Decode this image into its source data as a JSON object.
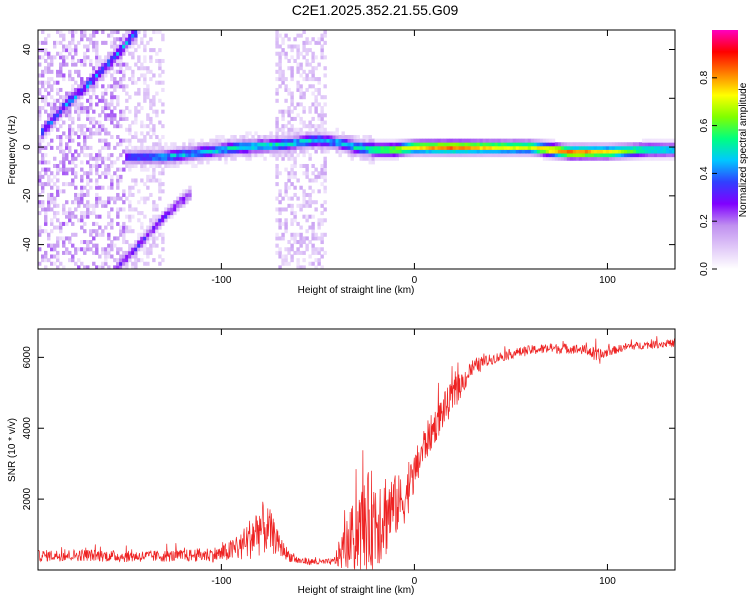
{
  "title": "C2E1.2025.352.21.55.G09",
  "chart_data": [
    {
      "type": "heatmap",
      "xlabel": "Height of straight line (km)",
      "ylabel": "Frequency (Hz)",
      "xlim": [
        -195,
        135
      ],
      "ylim": [
        -50,
        48
      ],
      "x_ticks": [
        -100,
        0,
        100
      ],
      "x_tick_labels": [
        "-100",
        "0",
        "100"
      ],
      "y_ticks": [
        -40,
        -20,
        0,
        20,
        40
      ],
      "y_tick_labels": [
        "-40",
        "-20",
        "0",
        "20",
        "40"
      ],
      "colorbar": {
        "label": "Normalized spectral amplitude",
        "range": [
          0,
          1
        ],
        "ticks": [
          0.0,
          0.2,
          0.4,
          0.6,
          0.8
        ],
        "tick_labels": [
          "0.0",
          "0.2",
          "0.4",
          "0.6",
          "0.8"
        ],
        "colors": [
          "#ffffff",
          "#e0c8f8",
          "#c090f0",
          "#8000ff",
          "#3040ff",
          "#00c8ff",
          "#00ff80",
          "#80ff00",
          "#ffff00",
          "#ff8000",
          "#ff0000",
          "#ff00c0"
        ]
      },
      "features": {
        "main_line": {
          "x": [
            -150,
            -130,
            -110,
            -90,
            -70,
            -50,
            -40,
            -30,
            -20,
            -10,
            0,
            20,
            40,
            60,
            80,
            100,
            120,
            135
          ],
          "freq": [
            -4,
            -4,
            -2,
            0,
            1,
            3,
            2,
            0,
            -1,
            -1,
            0,
            0,
            0,
            0,
            -2,
            -2,
            -1,
            -1
          ],
          "amp": [
            0.35,
            0.45,
            0.45,
            0.5,
            0.5,
            0.45,
            0.45,
            0.5,
            0.6,
            0.65,
            0.75,
            0.85,
            0.75,
            0.7,
            0.85,
            0.75,
            0.55,
            0.5
          ]
        },
        "upper_branch": {
          "x": [
            -193,
            -180,
            -170,
            -160,
            -150,
            -143
          ],
          "freq": [
            6,
            18,
            25,
            33,
            42,
            48
          ],
          "amp": 0.4
        },
        "lower_branch": {
          "x": [
            -155,
            -145,
            -135,
            -125,
            -115
          ],
          "freq": [
            -50,
            -42,
            -33,
            -25,
            -18
          ],
          "amp": 0.3
        },
        "noise_bands": [
          {
            "x": [
              -195,
              -150
            ],
            "level": 0.22
          },
          {
            "x": [
              -150,
              -130
            ],
            "level": 0.12
          },
          {
            "x": [
              -72,
              -45
            ],
            "level": 0.15
          }
        ]
      }
    },
    {
      "type": "line",
      "xlabel": "Height of straight line (km)",
      "ylabel": "SNR (10 * v/v)",
      "xlim": [
        -195,
        135
      ],
      "ylim": [
        0,
        6800
      ],
      "x_ticks": [
        -100,
        0,
        100
      ],
      "x_tick_labels": [
        "-100",
        "0",
        "100"
      ],
      "y_ticks": [
        2000,
        4000,
        6000
      ],
      "y_tick_labels": [
        "2000",
        "4000",
        "6000"
      ],
      "color": "#ee2222",
      "series": [
        {
          "name": "SNR",
          "x": [
            -195,
            -170,
            -150,
            -120,
            -100,
            -90,
            -85,
            -80,
            -75,
            -70,
            -65,
            -60,
            -50,
            -42,
            -38,
            -34,
            -30,
            -25,
            -20,
            -15,
            -10,
            -5,
            0,
            5,
            10,
            15,
            20,
            25,
            30,
            40,
            50,
            60,
            70,
            80,
            90,
            95,
            100,
            110,
            120,
            135
          ],
          "mean": [
            400,
            420,
            380,
            400,
            450,
            650,
            900,
            1200,
            1100,
            700,
            400,
            260,
            220,
            230,
            500,
            800,
            1000,
            1300,
            1500,
            1600,
            1800,
            2000,
            2700,
            3500,
            4000,
            4500,
            4900,
            5300,
            5700,
            5950,
            6100,
            6200,
            6250,
            6250,
            6200,
            6000,
            6150,
            6300,
            6350,
            6400
          ],
          "noise": [
            160,
            170,
            160,
            170,
            230,
            400,
            600,
            800,
            650,
            300,
            160,
            110,
            90,
            90,
            500,
            800,
            1100,
            1400,
            1500,
            1300,
            900,
            700,
            600,
            550,
            500,
            500,
            450,
            350,
            250,
            150,
            140,
            140,
            140,
            140,
            140,
            250,
            120,
            110,
            110,
            110
          ]
        }
      ]
    }
  ]
}
